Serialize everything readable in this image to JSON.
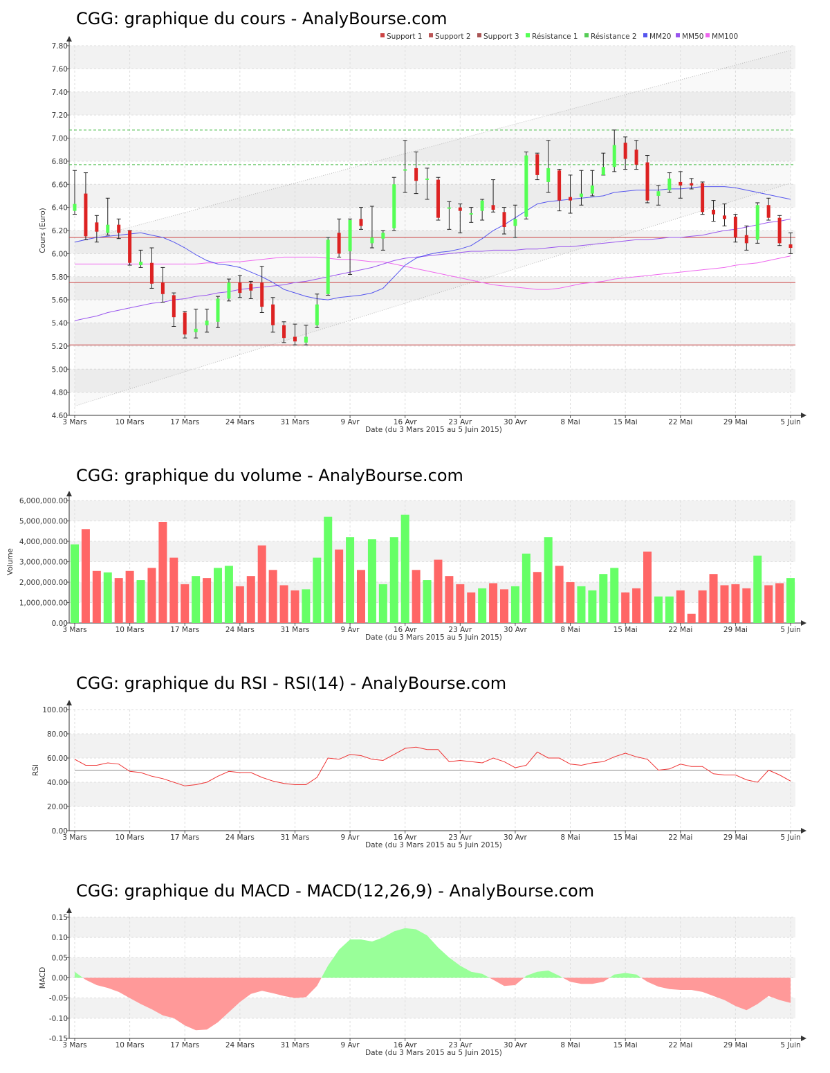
{
  "colors": {
    "up": "#55ff55",
    "down": "#dd2222",
    "vol_up": "#66ff66",
    "vol_down": "#ff6666",
    "support": "#cc4444",
    "resistance": "#44bb44",
    "mm20": "#5555ee",
    "mm50": "#9955ee",
    "mm100": "#ee66ee",
    "rsi": "#ee3333",
    "macd_pos": "#99ff99",
    "macd_neg": "#ff9999",
    "band_light": "#f2f2f2",
    "grid": "#dddddd"
  },
  "x_tick_labels": [
    "3 Mars",
    "10 Mars",
    "17 Mars",
    "24 Mars",
    "31 Mars",
    "9 Avr",
    "16 Avr",
    "23 Avr",
    "30 Avr",
    "8 Mai",
    "15 Mai",
    "22 Mai",
    "29 Mai",
    "5 Juin"
  ],
  "date_range_label": "Date (du 3 Mars 2015 au 5 Juin 2015)",
  "chart_data": [
    {
      "type": "candlestick",
      "title": "CGG: graphique du cours - AnalyBourse.com",
      "ylabel": "Cours (Euro)",
      "xlabel": "Date (du 3 Mars 2015 au 5 Juin 2015)",
      "ylim": [
        4.6,
        7.8
      ],
      "yticks": [
        "4.60",
        "4.80",
        "5.00",
        "5.20",
        "5.40",
        "5.60",
        "5.80",
        "6.00",
        "6.20",
        "6.40",
        "6.60",
        "6.80",
        "7.00",
        "7.20",
        "7.40",
        "7.60",
        "7.80"
      ],
      "legend": [
        "Support 1",
        "Support 2",
        "Support 3",
        "Résistance 1",
        "Résistance 2",
        "MM20",
        "MM50",
        "MM100"
      ],
      "support_levels": [
        6.14,
        5.75,
        5.21
      ],
      "resistance_levels": [
        6.77,
        7.07
      ],
      "channel_upper": [
        6.1,
        7.76
      ],
      "channel_lower": [
        4.68,
        6.61
      ],
      "candles": [
        {
          "open": 6.37,
          "close": 6.43,
          "high": 6.72,
          "low": 6.34
        },
        {
          "open": 6.52,
          "close": 6.15,
          "high": 6.7,
          "low": 6.12
        },
        {
          "open": 6.27,
          "close": 6.19,
          "high": 6.33,
          "low": 6.1
        },
        {
          "open": 6.18,
          "close": 6.25,
          "high": 6.48,
          "low": 6.16
        },
        {
          "open": 6.25,
          "close": 6.18,
          "high": 6.3,
          "low": 6.13
        },
        {
          "open": 6.2,
          "close": 5.92,
          "high": 6.2,
          "low": 5.9
        },
        {
          "open": 5.9,
          "close": 5.93,
          "high": 6.03,
          "low": 5.88
        },
        {
          "open": 5.92,
          "close": 5.74,
          "high": 6.05,
          "low": 5.7
        },
        {
          "open": 5.75,
          "close": 5.65,
          "high": 5.88,
          "low": 5.58
        },
        {
          "open": 5.64,
          "close": 5.45,
          "high": 5.66,
          "low": 5.37
        },
        {
          "open": 5.49,
          "close": 5.3,
          "high": 5.5,
          "low": 5.27
        },
        {
          "open": 5.32,
          "close": 5.35,
          "high": 5.52,
          "low": 5.27
        },
        {
          "open": 5.38,
          "close": 5.42,
          "high": 5.52,
          "low": 5.32
        },
        {
          "open": 5.41,
          "close": 5.61,
          "high": 5.63,
          "low": 5.36
        },
        {
          "open": 5.61,
          "close": 5.75,
          "high": 5.78,
          "low": 5.59
        },
        {
          "open": 5.75,
          "close": 5.66,
          "high": 5.81,
          "low": 5.62
        },
        {
          "open": 5.74,
          "close": 5.68,
          "high": 5.76,
          "low": 5.61
        },
        {
          "open": 5.75,
          "close": 5.54,
          "high": 5.89,
          "low": 5.49
        },
        {
          "open": 5.56,
          "close": 5.38,
          "high": 5.62,
          "low": 5.32
        },
        {
          "open": 5.38,
          "close": 5.27,
          "high": 5.41,
          "low": 5.23
        },
        {
          "open": 5.28,
          "close": 5.24,
          "high": 5.39,
          "low": 5.21
        },
        {
          "open": 5.23,
          "close": 5.28,
          "high": 5.38,
          "low": 5.21
        },
        {
          "open": 5.38,
          "close": 5.56,
          "high": 5.65,
          "low": 5.36
        },
        {
          "open": 5.65,
          "close": 6.12,
          "high": 6.14,
          "low": 5.64
        },
        {
          "open": 6.18,
          "close": 6.0,
          "high": 6.3,
          "low": 5.97
        },
        {
          "open": 6.02,
          "close": 6.29,
          "high": 6.3,
          "low": 5.82
        },
        {
          "open": 6.3,
          "close": 6.24,
          "high": 6.4,
          "low": 6.21
        },
        {
          "open": 6.09,
          "close": 6.14,
          "high": 6.41,
          "low": 6.05
        },
        {
          "open": 6.13,
          "close": 6.18,
          "high": 6.2,
          "low": 6.03
        },
        {
          "open": 6.22,
          "close": 6.6,
          "high": 6.66,
          "low": 6.2
        },
        {
          "open": 6.72,
          "close": 6.73,
          "high": 6.98,
          "low": 6.53
        },
        {
          "open": 6.74,
          "close": 6.63,
          "high": 6.88,
          "low": 6.52
        },
        {
          "open": 6.65,
          "close": 6.65,
          "high": 6.74,
          "low": 6.47
        },
        {
          "open": 6.64,
          "close": 6.31,
          "high": 6.66,
          "low": 6.29
        },
        {
          "open": 6.39,
          "close": 6.4,
          "high": 6.45,
          "low": 6.21
        },
        {
          "open": 6.4,
          "close": 6.37,
          "high": 6.43,
          "low": 6.18
        },
        {
          "open": 6.35,
          "close": 6.35,
          "high": 6.4,
          "low": 6.27
        },
        {
          "open": 6.37,
          "close": 6.46,
          "high": 6.47,
          "low": 6.29
        },
        {
          "open": 6.42,
          "close": 6.38,
          "high": 6.64,
          "low": 6.36
        },
        {
          "open": 6.36,
          "close": 6.23,
          "high": 6.4,
          "low": 6.17
        },
        {
          "open": 6.24,
          "close": 6.3,
          "high": 6.42,
          "low": 6.14
        },
        {
          "open": 6.32,
          "close": 6.85,
          "high": 6.88,
          "low": 6.3
        },
        {
          "open": 6.86,
          "close": 6.68,
          "high": 6.87,
          "low": 6.64
        },
        {
          "open": 6.62,
          "close": 6.74,
          "high": 6.98,
          "low": 6.53
        },
        {
          "open": 6.72,
          "close": 6.46,
          "high": 6.73,
          "low": 6.37
        },
        {
          "open": 6.49,
          "close": 6.46,
          "high": 6.68,
          "low": 6.35
        },
        {
          "open": 6.49,
          "close": 6.52,
          "high": 6.72,
          "low": 6.42
        },
        {
          "open": 6.52,
          "close": 6.59,
          "high": 6.72,
          "low": 6.5
        },
        {
          "open": 6.68,
          "close": 6.75,
          "high": 6.87,
          "low": 6.68
        },
        {
          "open": 6.75,
          "close": 6.94,
          "high": 7.07,
          "low": 6.71
        },
        {
          "open": 6.96,
          "close": 6.82,
          "high": 7.01,
          "low": 6.73
        },
        {
          "open": 6.9,
          "close": 6.77,
          "high": 6.98,
          "low": 6.73
        },
        {
          "open": 6.79,
          "close": 6.46,
          "high": 6.85,
          "low": 6.44
        },
        {
          "open": 6.5,
          "close": 6.54,
          "high": 6.59,
          "low": 6.42
        },
        {
          "open": 6.55,
          "close": 6.65,
          "high": 6.7,
          "low": 6.53
        },
        {
          "open": 6.62,
          "close": 6.59,
          "high": 6.71,
          "low": 6.48
        },
        {
          "open": 6.61,
          "close": 6.59,
          "high": 6.65,
          "low": 6.56
        },
        {
          "open": 6.61,
          "close": 6.36,
          "high": 6.62,
          "low": 6.34
        },
        {
          "open": 6.38,
          "close": 6.34,
          "high": 6.46,
          "low": 6.28
        },
        {
          "open": 6.33,
          "close": 6.3,
          "high": 6.43,
          "low": 6.24
        },
        {
          "open": 6.32,
          "close": 6.14,
          "high": 6.34,
          "low": 6.1
        },
        {
          "open": 6.16,
          "close": 6.09,
          "high": 6.24,
          "low": 6.03
        },
        {
          "open": 6.12,
          "close": 6.42,
          "high": 6.44,
          "low": 6.09
        },
        {
          "open": 6.42,
          "close": 6.31,
          "high": 6.48,
          "low": 6.29
        },
        {
          "open": 6.31,
          "close": 6.09,
          "high": 6.33,
          "low": 6.07
        },
        {
          "open": 6.08,
          "close": 6.05,
          "high": 6.18,
          "low": 6.0
        }
      ],
      "mm20": [
        6.1,
        6.12,
        6.14,
        6.15,
        6.16,
        6.17,
        6.18,
        6.16,
        6.14,
        6.1,
        6.05,
        5.99,
        5.94,
        5.91,
        5.9,
        5.88,
        5.84,
        5.8,
        5.75,
        5.69,
        5.66,
        5.63,
        5.61,
        5.6,
        5.62,
        5.63,
        5.64,
        5.66,
        5.7,
        5.8,
        5.9,
        5.96,
        5.99,
        6.01,
        6.02,
        6.04,
        6.07,
        6.13,
        6.2,
        6.25,
        6.31,
        6.37,
        6.43,
        6.45,
        6.46,
        6.47,
        6.48,
        6.49,
        6.5,
        6.53,
        6.54,
        6.55,
        6.55,
        6.55,
        6.56,
        6.56,
        6.57,
        6.58,
        6.58,
        6.58,
        6.57,
        6.55,
        6.53,
        6.51,
        6.49,
        6.47
      ],
      "mm50": [
        5.42,
        5.44,
        5.46,
        5.49,
        5.51,
        5.53,
        5.55,
        5.57,
        5.58,
        5.6,
        5.61,
        5.63,
        5.64,
        5.66,
        5.67,
        5.69,
        5.7,
        5.71,
        5.72,
        5.73,
        5.75,
        5.76,
        5.78,
        5.8,
        5.82,
        5.84,
        5.86,
        5.88,
        5.91,
        5.94,
        5.96,
        5.97,
        5.98,
        5.99,
        6.0,
        6.01,
        6.02,
        6.02,
        6.03,
        6.03,
        6.03,
        6.04,
        6.04,
        6.05,
        6.06,
        6.06,
        6.07,
        6.08,
        6.09,
        6.1,
        6.11,
        6.12,
        6.12,
        6.13,
        6.14,
        6.14,
        6.15,
        6.16,
        6.18,
        6.2,
        6.21,
        6.23,
        6.25,
        6.27,
        6.28,
        6.3
      ],
      "mm100": [
        5.91,
        5.91,
        5.91,
        5.91,
        5.91,
        5.91,
        5.91,
        5.91,
        5.91,
        5.91,
        5.91,
        5.91,
        5.92,
        5.92,
        5.93,
        5.93,
        5.94,
        5.95,
        5.96,
        5.97,
        5.97,
        5.97,
        5.97,
        5.96,
        5.95,
        5.95,
        5.94,
        5.93,
        5.93,
        5.91,
        5.89,
        5.87,
        5.85,
        5.83,
        5.81,
        5.79,
        5.77,
        5.75,
        5.73,
        5.72,
        5.71,
        5.7,
        5.69,
        5.69,
        5.7,
        5.72,
        5.74,
        5.75,
        5.76,
        5.78,
        5.79,
        5.8,
        5.81,
        5.82,
        5.83,
        5.84,
        5.85,
        5.86,
        5.87,
        5.88,
        5.9,
        5.91,
        5.92,
        5.94,
        5.96,
        5.98
      ]
    },
    {
      "type": "bar",
      "title": "CGG: graphique du volume - AnalyBourse.com",
      "ylabel": "Volume",
      "xlabel": "Date (du 3 Mars 2015 au 5 Juin 2015)",
      "ylim": [
        0,
        6000000
      ],
      "yticks": [
        "0.00",
        "1,000,000.00",
        "2,000,000.00",
        "3,000,000.00",
        "4,000,000.00",
        "5,000,000.00",
        "6,000,000.00"
      ],
      "values": [
        3850000,
        4600000,
        2550000,
        2480000,
        2200000,
        2550000,
        2100000,
        2700000,
        4950000,
        3200000,
        1900000,
        2300000,
        2200000,
        2700000,
        2800000,
        1800000,
        2300000,
        3800000,
        2600000,
        1850000,
        1600000,
        1650000,
        3200000,
        5200000,
        3600000,
        4200000,
        2600000,
        4100000,
        1900000,
        4200000,
        5300000,
        2600000,
        2100000,
        3100000,
        2300000,
        1900000,
        1500000,
        1700000,
        1950000,
        1650000,
        1800000,
        3400000,
        2500000,
        4200000,
        2800000,
        2000000,
        1800000,
        1600000,
        2400000,
        2700000,
        1500000,
        1700000,
        3500000,
        1300000,
        1300000,
        1600000,
        450000,
        1600000,
        2400000,
        1850000,
        1900000,
        1700000,
        3300000,
        1850000,
        1950000,
        2200000
      ],
      "up": [
        true,
        false,
        false,
        true,
        false,
        false,
        true,
        false,
        false,
        false,
        false,
        true,
        false,
        true,
        true,
        false,
        false,
        false,
        false,
        false,
        false,
        true,
        true,
        true,
        false,
        true,
        false,
        true,
        true,
        true,
        true,
        false,
        true,
        false,
        false,
        false,
        false,
        true,
        false,
        false,
        true,
        true,
        false,
        true,
        false,
        false,
        true,
        true,
        true,
        true,
        false,
        false,
        false,
        true,
        true,
        false,
        false,
        false,
        false,
        false,
        false,
        false,
        true,
        false,
        false,
        true
      ]
    },
    {
      "type": "line",
      "title": "CGG: graphique du RSI - RSI(14) - AnalyBourse.com",
      "ylabel": "RSI",
      "xlabel": "Date (du 3 Mars 2015 au 5 Juin 2015)",
      "ylim": [
        0,
        100
      ],
      "yticks": [
        "0.00",
        "20.00",
        "40.00",
        "60.00",
        "80.00",
        "100.00"
      ],
      "reference_line": 50,
      "values": [
        59,
        54,
        54,
        56,
        55,
        49,
        48,
        45,
        43,
        40,
        37,
        38,
        40,
        45,
        49,
        48,
        48,
        44,
        41,
        39,
        38,
        38,
        44,
        60,
        59,
        63,
        62,
        59,
        58,
        63,
        68,
        69,
        67,
        67,
        57,
        58,
        57,
        56,
        60,
        57,
        52,
        54,
        65,
        60,
        60,
        55,
        54,
        56,
        57,
        61,
        64,
        61,
        59,
        50,
        51,
        55,
        53,
        53,
        47,
        46,
        46,
        42,
        40,
        50,
        46,
        41
      ]
    },
    {
      "type": "area",
      "title": "CGG: graphique du MACD - MACD(12,26,9) - AnalyBourse.com",
      "ylabel": "MACD",
      "xlabel": "Date (du 3 Mars 2015 au 5 Juin 2015)",
      "ylim": [
        -0.15,
        0.15
      ],
      "yticks": [
        "-0.15",
        "-0.10",
        "-0.05",
        "0.00",
        "0.05",
        "0.10",
        "0.15"
      ],
      "values": [
        0.015,
        -0.005,
        -0.018,
        -0.025,
        -0.035,
        -0.05,
        -0.065,
        -0.078,
        -0.093,
        -0.1,
        -0.118,
        -0.13,
        -0.128,
        -0.11,
        -0.085,
        -0.06,
        -0.04,
        -0.032,
        -0.038,
        -0.045,
        -0.05,
        -0.048,
        -0.02,
        0.03,
        0.07,
        0.095,
        0.095,
        0.09,
        0.1,
        0.115,
        0.123,
        0.12,
        0.105,
        0.075,
        0.05,
        0.03,
        0.015,
        0.01,
        -0.005,
        -0.02,
        -0.018,
        0.005,
        0.015,
        0.018,
        0.005,
        -0.01,
        -0.015,
        -0.015,
        -0.01,
        0.008,
        0.012,
        0.008,
        -0.01,
        -0.022,
        -0.028,
        -0.03,
        -0.03,
        -0.035,
        -0.045,
        -0.055,
        -0.07,
        -0.08,
        -0.065,
        -0.045,
        -0.055,
        -0.062
      ]
    }
  ]
}
